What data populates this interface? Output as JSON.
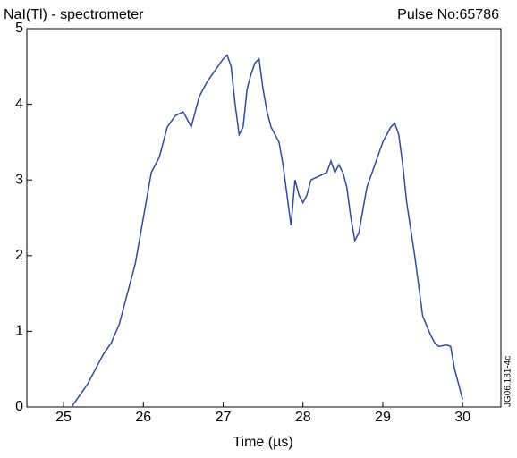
{
  "chart_data": {
    "type": "line",
    "title": "NaI(Tl) - spectrometer",
    "subtitle": "Pulse No:65786",
    "x_label": "Time (µs)",
    "annotation": "JG06.131-4c",
    "x": [
      25.1,
      25.2,
      25.3,
      25.4,
      25.5,
      25.6,
      25.7,
      25.8,
      25.9,
      26.0,
      26.1,
      26.2,
      26.3,
      26.4,
      26.5,
      26.6,
      26.7,
      26.8,
      26.9,
      27.0,
      27.05,
      27.1,
      27.15,
      27.2,
      27.25,
      27.3,
      27.35,
      27.4,
      27.45,
      27.5,
      27.55,
      27.6,
      27.7,
      27.75,
      27.8,
      27.85,
      27.9,
      27.95,
      28.0,
      28.05,
      28.1,
      28.2,
      28.3,
      28.35,
      28.4,
      28.45,
      28.5,
      28.55,
      28.6,
      28.65,
      28.7,
      28.75,
      28.8,
      28.9,
      29.0,
      29.1,
      29.15,
      29.2,
      29.25,
      29.3,
      29.4,
      29.5,
      29.6,
      29.65,
      29.7,
      29.8,
      29.85,
      29.9,
      29.95,
      30.0
    ],
    "series": [
      {
        "name": "NaI(Tl)",
        "color": "#3048a0",
        "values": [
          0,
          0.15,
          0.3,
          0.5,
          0.7,
          0.85,
          1.1,
          1.5,
          1.9,
          2.5,
          3.1,
          3.3,
          3.7,
          3.85,
          3.9,
          3.7,
          4.1,
          4.3,
          4.45,
          4.6,
          4.65,
          4.5,
          4.0,
          3.6,
          3.7,
          4.2,
          4.4,
          4.55,
          4.6,
          4.2,
          3.9,
          3.7,
          3.5,
          3.2,
          2.8,
          2.4,
          3.0,
          2.8,
          2.7,
          2.8,
          3.0,
          3.05,
          3.1,
          3.25,
          3.1,
          3.2,
          3.1,
          2.9,
          2.5,
          2.2,
          2.3,
          2.6,
          2.9,
          3.2,
          3.5,
          3.7,
          3.75,
          3.6,
          3.2,
          2.7,
          2.0,
          1.2,
          0.95,
          0.85,
          0.8,
          0.82,
          0.8,
          0.5,
          0.3,
          0.1
        ]
      }
    ],
    "xlim": [
      24.54,
      30.48
    ],
    "xticks": [
      25,
      26,
      27,
      28,
      29,
      30
    ],
    "ylim": [
      0,
      5
    ],
    "yticks": [
      0,
      1,
      2,
      3,
      4,
      5
    ]
  }
}
